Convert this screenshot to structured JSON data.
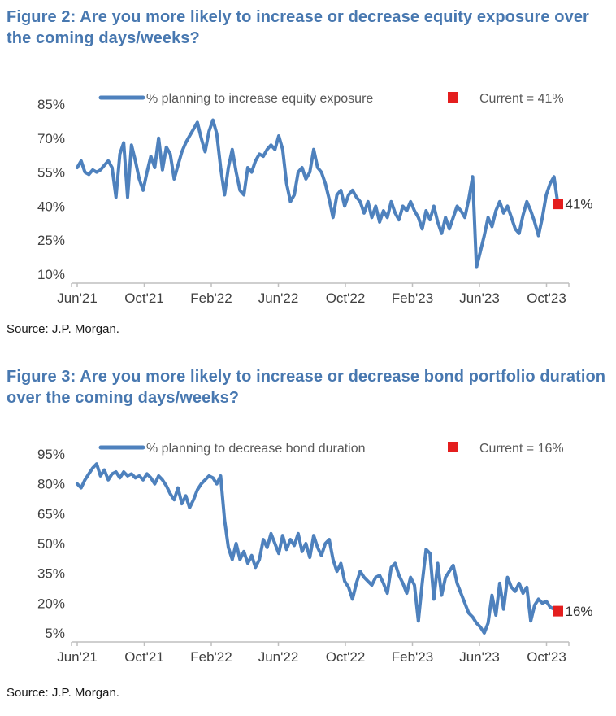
{
  "figure2": {
    "title": "Figure 2: Are you more likely to increase or decrease equity exposure over the coming days/weeks?",
    "source": "Source: J.P. Morgan."
  },
  "figure3": {
    "title": "Figure 3: Are you more likely to increase or decrease bond portfolio duration over the coming days/weeks?",
    "source": "Source: J.P. Morgan."
  },
  "colors": {
    "title_blue": "#4878B0",
    "line_blue": "#4E81BD",
    "current_red": "#E41E1E",
    "axis_gray": "#BFBFBF",
    "tick_label_gray": "#404040",
    "legend_text_gray": "#595959"
  },
  "chart_data": [
    {
      "type": "line",
      "title": "Figure 2: Are you more likely to increase or decrease equity exposure over the coming days/weeks?",
      "x_tick_labels": [
        "Jun'21",
        "Oct'21",
        "Feb'22",
        "Jun'22",
        "Oct'22",
        "Feb'23",
        "Jun'23",
        "Oct'23"
      ],
      "y_ticks": [
        85,
        70,
        55,
        40,
        25,
        10
      ],
      "y_tick_suffix": "%",
      "ylim": [
        6,
        88
      ],
      "grid": false,
      "legend_position": "top",
      "legend_current_label": "Current = 41%",
      "current_value": 41,
      "current_annotation": "41%",
      "line_color": "#4E81BD",
      "marker_color": "#E41E1E",
      "series": [
        {
          "name": "% planning to increase equity exposure",
          "values": [
            57,
            60,
            55,
            54,
            56,
            55,
            56,
            58,
            60,
            57,
            44,
            63,
            68,
            44,
            67,
            60,
            52,
            47,
            55,
            62,
            57,
            70,
            56,
            66,
            63,
            52,
            58,
            64,
            68,
            71,
            74,
            77,
            70,
            64,
            73,
            78,
            72,
            57,
            45,
            57,
            65,
            55,
            47,
            45,
            57,
            55,
            60,
            63,
            62,
            65,
            67,
            65,
            71,
            65,
            50,
            42,
            45,
            55,
            57,
            52,
            55,
            65,
            57,
            55,
            50,
            43,
            35,
            45,
            47,
            40,
            45,
            47,
            44,
            42,
            37,
            42,
            35,
            40,
            33,
            38,
            35,
            42,
            37,
            34,
            40,
            38,
            42,
            38,
            35,
            30,
            38,
            34,
            40,
            33,
            28,
            35,
            30,
            35,
            40,
            38,
            35,
            43,
            53,
            13,
            20,
            27,
            35,
            31,
            38,
            42,
            37,
            40,
            35,
            30,
            28,
            36,
            42,
            38,
            33,
            27,
            35,
            45,
            50,
            53,
            41
          ]
        }
      ]
    },
    {
      "type": "line",
      "title": "Figure 3: Are you more likely to increase or decrease bond portfolio duration over the coming days/weeks?",
      "x_tick_labels": [
        "Jun'21",
        "Oct'21",
        "Feb'22",
        "Jun'22",
        "Oct'22",
        "Feb'23",
        "Jun'23",
        "Oct'23"
      ],
      "y_ticks": [
        95,
        80,
        65,
        50,
        35,
        20,
        5
      ],
      "y_tick_suffix": "%",
      "ylim": [
        0,
        99
      ],
      "grid": false,
      "legend_position": "top",
      "legend_current_label": "Current = 16%",
      "current_value": 16,
      "current_annotation": "16%",
      "line_color": "#4E81BD",
      "marker_color": "#E41E1E",
      "series": [
        {
          "name": "% planning to decrease bond duration",
          "values": [
            80,
            78,
            82,
            85,
            88,
            90,
            84,
            87,
            82,
            85,
            86,
            83,
            86,
            84,
            85,
            83,
            84,
            82,
            85,
            83,
            80,
            84,
            82,
            79,
            75,
            72,
            78,
            70,
            74,
            68,
            72,
            77,
            80,
            82,
            84,
            83,
            80,
            84,
            62,
            48,
            42,
            50,
            42,
            46,
            40,
            44,
            38,
            42,
            52,
            48,
            55,
            50,
            45,
            54,
            47,
            52,
            49,
            55,
            46,
            50,
            43,
            54,
            48,
            44,
            50,
            52,
            42,
            36,
            40,
            31,
            28,
            22,
            30,
            36,
            33,
            31,
            29,
            33,
            34,
            30,
            25,
            38,
            40,
            34,
            30,
            25,
            33,
            29,
            11,
            30,
            47,
            45,
            22,
            40,
            24,
            33,
            36,
            39,
            30,
            25,
            20,
            15,
            13,
            10,
            8,
            5,
            10,
            24,
            14,
            30,
            17,
            33,
            28,
            26,
            30,
            25,
            28,
            11,
            19,
            22,
            20,
            21,
            18,
            17,
            16
          ]
        }
      ]
    }
  ]
}
